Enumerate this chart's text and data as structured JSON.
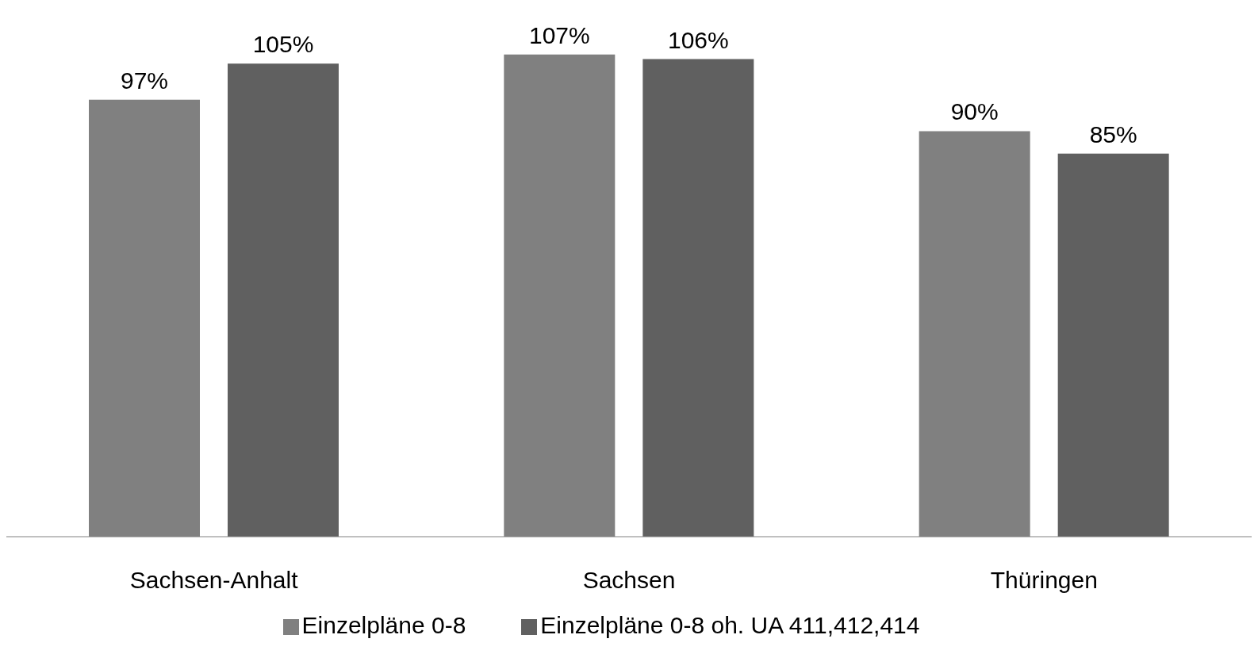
{
  "chart_data": {
    "type": "bar",
    "categories": [
      "Sachsen-Anhalt",
      "Sachsen",
      "Thüringen"
    ],
    "series": [
      {
        "name": "Einzelpläne 0-8",
        "color": "#808080",
        "values": [
          97,
          107,
          90
        ],
        "value_labels": [
          "97%",
          "107%",
          "90%"
        ]
      },
      {
        "name": "Einzelpläne 0-8 oh. UA 411,412,414",
        "color": "#606060",
        "values": [
          105,
          106,
          85
        ],
        "value_labels": [
          "105%",
          "106%",
          "85%"
        ]
      }
    ],
    "legend": "bottom"
  }
}
